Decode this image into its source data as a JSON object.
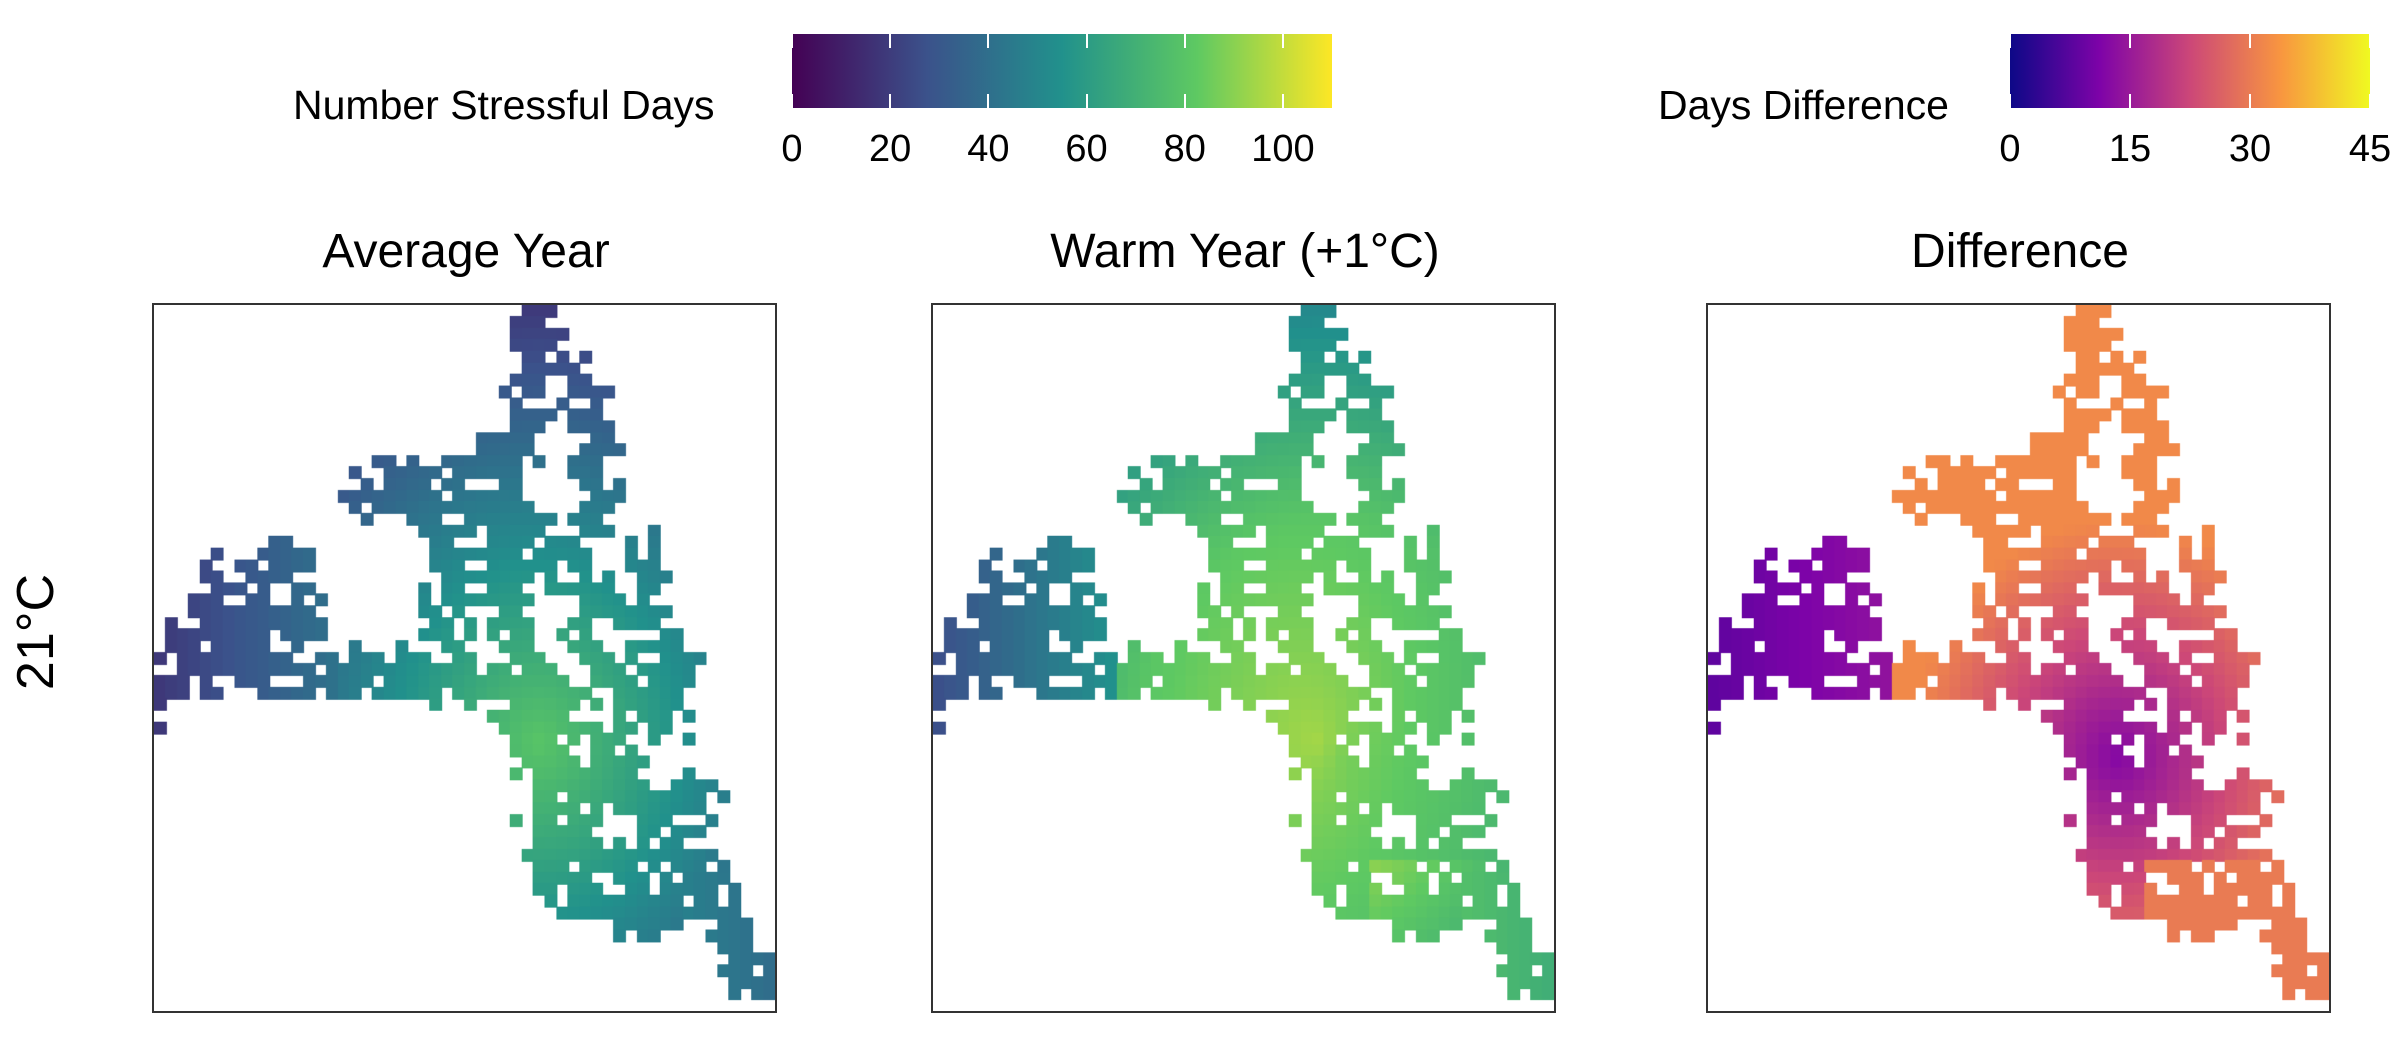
{
  "chart_data": {
    "type": "heatmap",
    "row_label": "21°C",
    "panels": [
      {
        "title": "Average Year",
        "scale": "stressful_days",
        "description_values": {
          "min": 18,
          "max": 80
        }
      },
      {
        "title": "Warm Year (+1°C)",
        "scale": "stressful_days",
        "description_values": {
          "min": 32,
          "max": 105
        }
      },
      {
        "title": "Difference",
        "scale": "days_difference",
        "description_values": {
          "min": 8,
          "max": 32
        }
      }
    ],
    "legends": {
      "stressful_days": {
        "title": "Number Stressful Days",
        "ticks": [
          "0",
          "20",
          "40",
          "60",
          "80",
          "100"
        ],
        "range": [
          0,
          110
        ],
        "palette": "viridis",
        "colors": [
          "#440154",
          "#3b528b",
          "#21918c",
          "#5ec962",
          "#fde725"
        ]
      },
      "days_difference": {
        "title": "Days Difference",
        "ticks": [
          "0",
          "15",
          "30",
          "45"
        ],
        "range": [
          0,
          45
        ],
        "palette": "plasma",
        "colors": [
          "#0d0887",
          "#7e03a8",
          "#cc4778",
          "#f89540",
          "#f0f921"
        ]
      }
    }
  }
}
